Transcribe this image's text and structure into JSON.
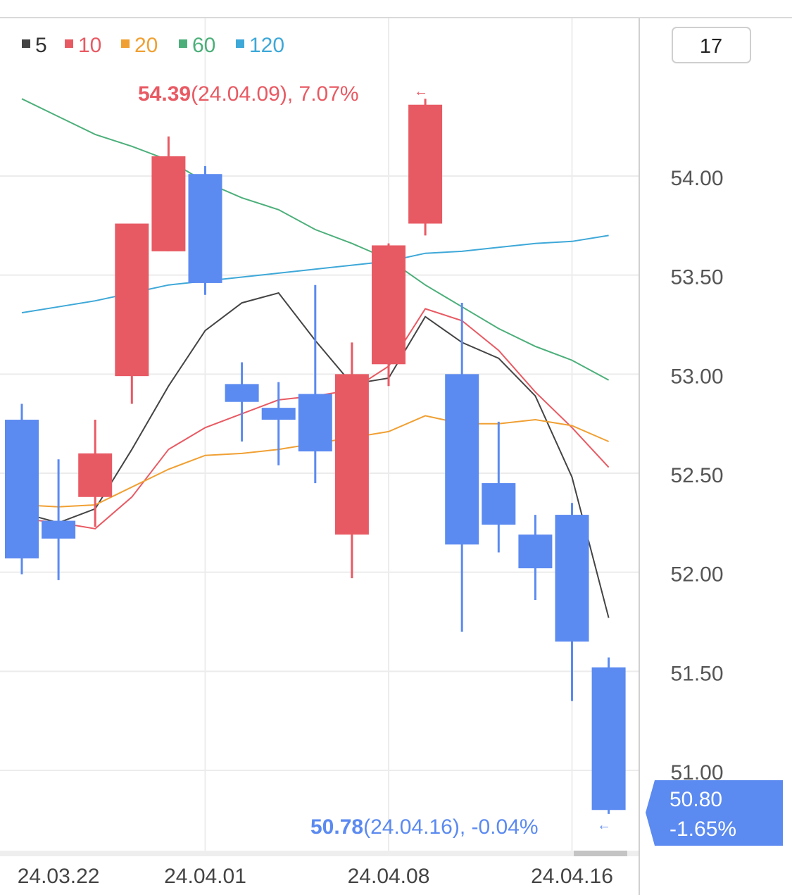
{
  "chart_data": {
    "type": "candlestick",
    "title": "",
    "xlabel": "",
    "ylabel": "",
    "ylim": [
      50.7,
      54.55
    ],
    "yticks": [
      "54.00",
      "53.50",
      "53.00",
      "52.50",
      "52.00",
      "51.50",
      "51.00"
    ],
    "xticks": [
      "24.03.22",
      "24.04.01",
      "24.04.08",
      "24.04.16"
    ],
    "period_box": "17",
    "legend": {
      "placement": "top-left",
      "items": [
        {
          "label": "5",
          "color": "#444444"
        },
        {
          "label": "10",
          "color": "#e85a63"
        },
        {
          "label": "20",
          "color": "#f0a033"
        },
        {
          "label": "60",
          "color": "#4caf7a"
        },
        {
          "label": "120",
          "color": "#3ea8d8"
        }
      ]
    },
    "colors": {
      "up": "#e85a63",
      "down": "#5b8af0"
    },
    "candles": [
      {
        "open": 52.77,
        "high": 52.85,
        "low": 51.99,
        "close": 52.07
      },
      {
        "open": 52.26,
        "high": 52.57,
        "low": 51.96,
        "close": 52.17
      },
      {
        "open": 52.38,
        "high": 52.77,
        "low": 52.23,
        "close": 52.6
      },
      {
        "open": 52.99,
        "high": 53.76,
        "low": 52.85,
        "close": 53.76
      },
      {
        "open": 53.62,
        "high": 54.2,
        "low": 53.62,
        "close": 54.1
      },
      {
        "open": 54.01,
        "high": 54.05,
        "low": 53.4,
        "close": 53.46
      },
      {
        "open": 52.95,
        "high": 53.06,
        "low": 52.66,
        "close": 52.86
      },
      {
        "open": 52.83,
        "high": 52.96,
        "low": 52.54,
        "close": 52.77
      },
      {
        "open": 52.9,
        "high": 53.45,
        "low": 52.45,
        "close": 52.61
      },
      {
        "open": 52.19,
        "high": 53.16,
        "low": 51.97,
        "close": 53.0
      },
      {
        "open": 53.05,
        "high": 53.66,
        "low": 52.94,
        "close": 53.65
      },
      {
        "open": 53.76,
        "high": 54.39,
        "low": 53.7,
        "close": 54.36
      },
      {
        "open": 53.0,
        "high": 53.36,
        "low": 51.7,
        "close": 52.14
      },
      {
        "open": 52.45,
        "high": 52.76,
        "low": 52.1,
        "close": 52.24
      },
      {
        "open": 52.19,
        "high": 52.29,
        "low": 51.86,
        "close": 52.02
      },
      {
        "open": 52.29,
        "high": 52.35,
        "low": 51.35,
        "close": 51.65
      },
      {
        "open": 51.52,
        "high": 51.57,
        "low": 50.78,
        "close": 50.8
      }
    ],
    "series": [
      {
        "name": "5",
        "values": [
          52.3,
          52.25,
          52.32,
          52.62,
          52.94,
          53.22,
          53.36,
          53.41,
          53.17,
          52.95,
          52.98,
          53.29,
          53.16,
          53.08,
          52.89,
          52.48,
          51.77
        ]
      },
      {
        "name": "10",
        "values": [
          52.27,
          52.25,
          52.22,
          52.38,
          52.62,
          52.73,
          52.8,
          52.87,
          52.89,
          52.92,
          53.04,
          53.33,
          53.27,
          53.12,
          52.91,
          52.73,
          52.53
        ]
      },
      {
        "name": "20",
        "values": [
          52.34,
          52.33,
          52.34,
          52.43,
          52.52,
          52.59,
          52.6,
          52.62,
          52.65,
          52.68,
          52.71,
          52.79,
          52.75,
          52.75,
          52.77,
          52.74,
          52.66
        ]
      },
      {
        "name": "60",
        "values": [
          54.39,
          54.3,
          54.21,
          54.15,
          54.08,
          53.97,
          53.89,
          53.83,
          53.73,
          53.66,
          53.58,
          53.45,
          53.34,
          53.23,
          53.14,
          53.07,
          52.97
        ]
      },
      {
        "name": "120",
        "values": [
          53.31,
          53.34,
          53.37,
          53.41,
          53.45,
          53.47,
          53.49,
          53.51,
          53.53,
          53.55,
          53.57,
          53.61,
          53.62,
          53.64,
          53.66,
          53.67,
          53.7
        ]
      }
    ],
    "annotations": {
      "high": {
        "value": "54.39",
        "detail": "(24.04.09), 7.07%",
        "arrow": "←"
      },
      "low": {
        "value": "50.78",
        "detail": "(24.04.16), -0.04%",
        "arrow": "←"
      }
    },
    "current": {
      "price": "50.80",
      "change": "-1.65%"
    }
  }
}
